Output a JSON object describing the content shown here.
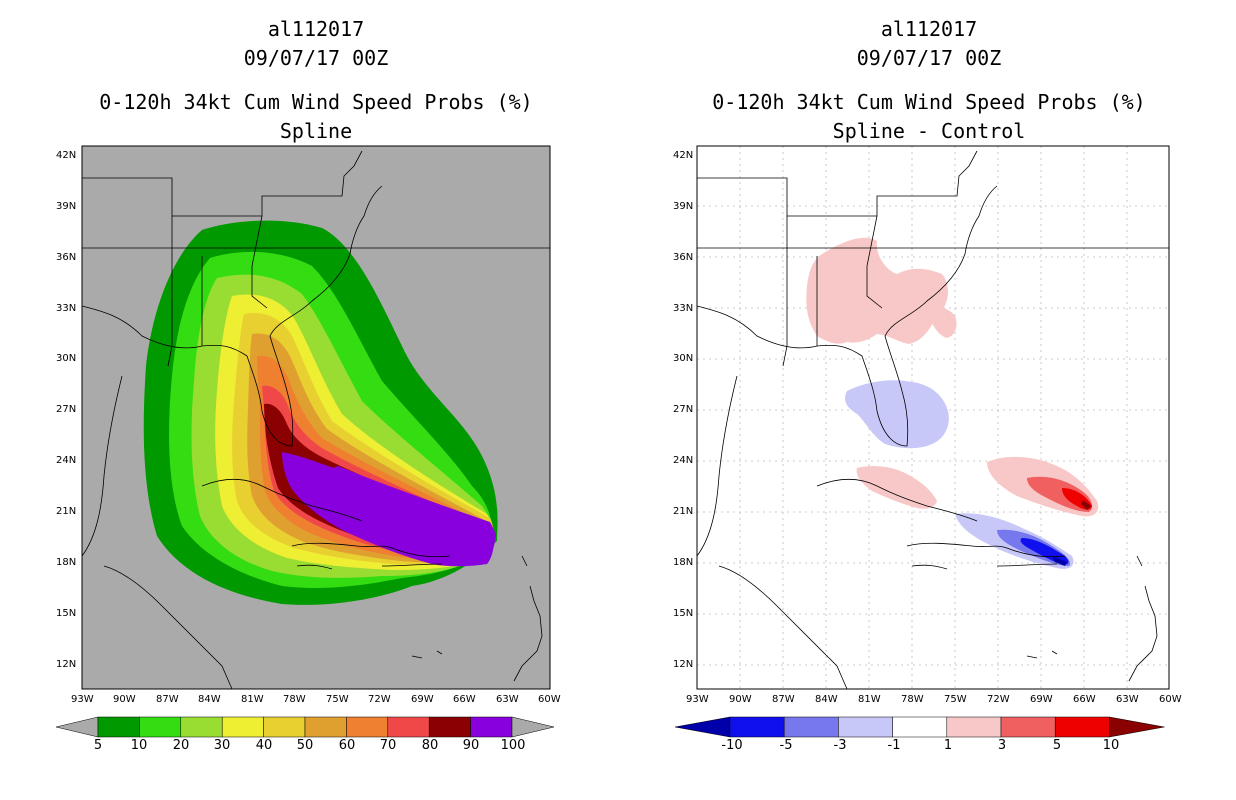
{
  "left_panel": {
    "storm_id": "al112017",
    "datetime": "09/07/17 00Z",
    "product": "0-120h 34kt Cum Wind Speed Probs (%)",
    "subtitle": "Spline",
    "colorbar": {
      "labels": [
        "5",
        "10",
        "20",
        "30",
        "40",
        "50",
        "60",
        "70",
        "80",
        "90",
        "100"
      ],
      "colors": [
        "#009900",
        "#33dd11",
        "#99dd33",
        "#eeee33",
        "#e8d030",
        "#e0a030",
        "#ee8030",
        "#f04848",
        "#8b0000",
        "#8800dd"
      ]
    }
  },
  "right_panel": {
    "storm_id": "al112017",
    "datetime": "09/07/17 00Z",
    "product": "0-120h 34kt Cum Wind Speed Probs (%)",
    "subtitle": "Spline - Control",
    "colorbar": {
      "labels": [
        "-10",
        "-5",
        "-3",
        "-1",
        "1",
        "3",
        "5",
        "10"
      ],
      "colors": [
        "#0000aa",
        "#1010ee",
        "#7777ee",
        "#c8c8f8",
        "#ffffff",
        "#f8c8c8",
        "#f06060",
        "#ee0000",
        "#8b0000"
      ]
    }
  },
  "map": {
    "lat_labels": [
      "42N",
      "39N",
      "36N",
      "33N",
      "30N",
      "27N",
      "24N",
      "21N",
      "18N",
      "15N",
      "12N"
    ],
    "lon_labels": [
      "93W",
      "90W",
      "87W",
      "84W",
      "81W",
      "78W",
      "75W",
      "72W",
      "69W",
      "66W",
      "63W",
      "60W"
    ]
  },
  "colors": {
    "background_left": "#aaaaaa",
    "background_right": "#ffffff",
    "coast": "#000000"
  }
}
